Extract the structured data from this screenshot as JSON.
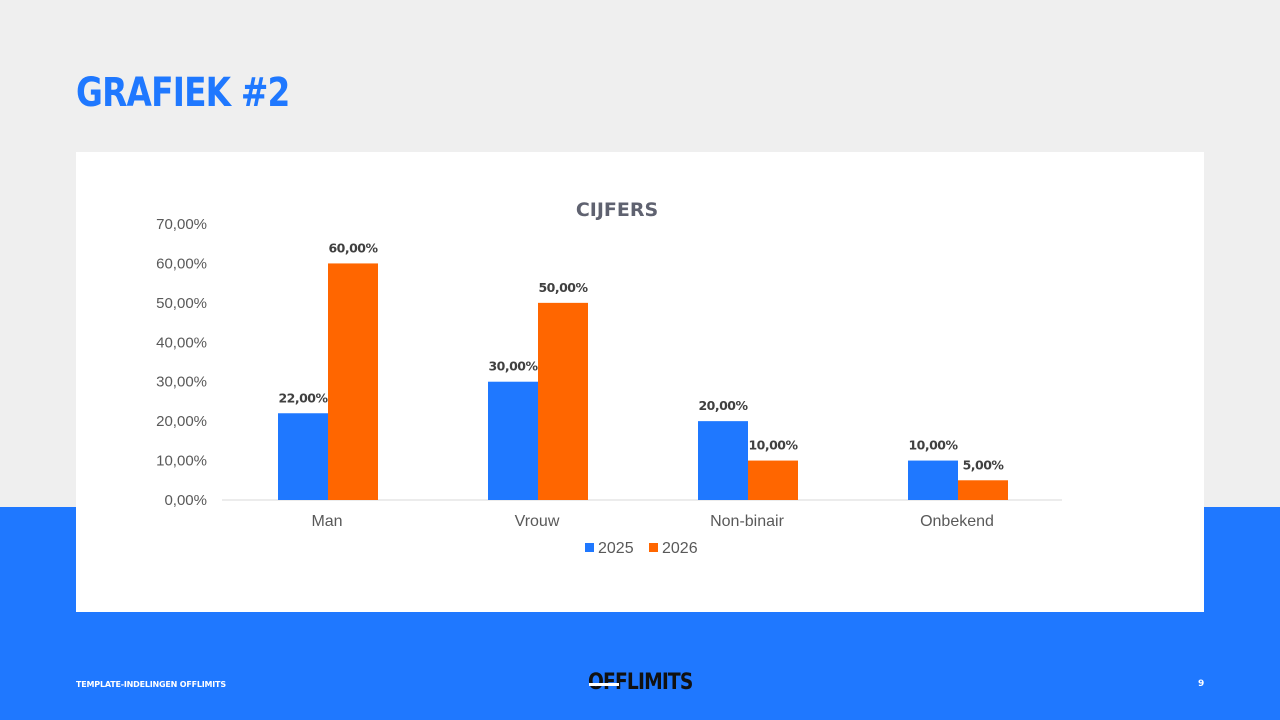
{
  "slide": {
    "title": "GRAFIEK #2",
    "footer_left": "TEMPLATE-INDELINGEN OFFLIMITS",
    "logo": "OFFLIMITS",
    "page_number": "9"
  },
  "colors": {
    "brand_blue": "#1f78ff",
    "background": "#efefef",
    "series_2025": "#1f78ff",
    "series_2026": "#ff6600"
  },
  "chart_data": {
    "type": "bar",
    "title": "CIJFERS",
    "categories": [
      "Man",
      "Vrouw",
      "Non-binair",
      "Onbekend"
    ],
    "series": [
      {
        "name": "2025",
        "values": [
          22,
          30,
          20,
          10
        ],
        "labels": [
          "22,00%",
          "30,00%",
          "20,00%",
          "10,00%"
        ]
      },
      {
        "name": "2026",
        "values": [
          60,
          50,
          10,
          5
        ],
        "labels": [
          "60,00%",
          "50,00%",
          "10,00%",
          "5,00%"
        ]
      }
    ],
    "ylim": [
      0,
      70
    ],
    "yticks": [
      "0,00%",
      "10,00%",
      "20,00%",
      "30,00%",
      "40,00%",
      "50,00%",
      "60,00%",
      "70,00%"
    ],
    "grid": false,
    "legend": "bottom"
  }
}
